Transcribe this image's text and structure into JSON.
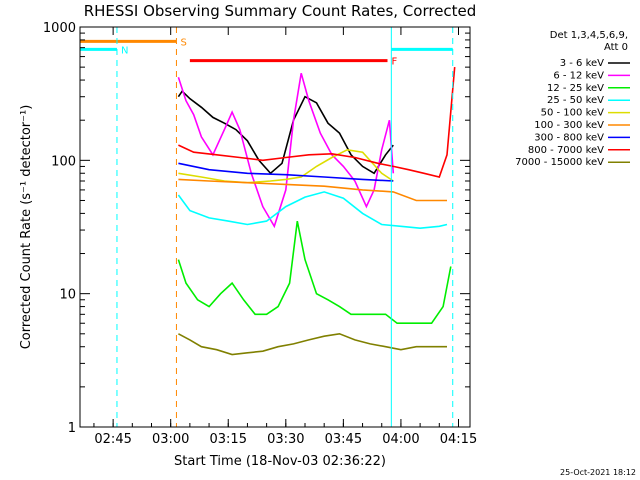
{
  "chart_data": {
    "type": "line",
    "title": "RHESSI Observing Summary Count Rates, Corrected",
    "xlabel": "Start Time (18-Nov-03 02:36:22)",
    "ylabel": "Corrected Count Rate (s⁻¹ detector⁻¹)",
    "y_scale": "log",
    "ylim": [
      1,
      1000
    ],
    "xlim": [
      "02:36:22",
      "04:18:00"
    ],
    "x_ticks": [
      "02:45",
      "03:00",
      "03:15",
      "03:30",
      "03:45",
      "04:00",
      "04:15"
    ],
    "y_ticks": [
      "1",
      "10",
      "100",
      "1000"
    ],
    "grid": false,
    "legend_header": [
      "Det 1,3,4,5,6,9,",
      "Att 0"
    ],
    "legend_position": "right",
    "series": [
      {
        "name": "3 - 6 keV",
        "color": "#000000",
        "x": [
          "03:02",
          "03:03",
          "03:05",
          "03:08",
          "03:11",
          "03:14",
          "03:17",
          "03:20",
          "03:23",
          "03:26",
          "03:29",
          "03:32",
          "03:35",
          "03:38",
          "03:41",
          "03:44",
          "03:47",
          "03:50",
          "03:53",
          "03:56",
          "03:58"
        ],
        "y": [
          300,
          330,
          290,
          250,
          210,
          190,
          170,
          140,
          100,
          80,
          95,
          200,
          300,
          270,
          190,
          160,
          110,
          90,
          80,
          110,
          130
        ]
      },
      {
        "name": "6 - 12 keV",
        "color": "#ff00ff",
        "x": [
          "03:02",
          "03:04",
          "03:06",
          "03:08",
          "03:11",
          "03:14",
          "03:16",
          "03:18",
          "03:21",
          "03:24",
          "03:27",
          "03:30",
          "03:32",
          "03:34",
          "03:36",
          "03:39",
          "03:42",
          "03:45",
          "03:48",
          "03:51",
          "03:53",
          "03:55",
          "03:57",
          "03:58"
        ],
        "y": [
          420,
          280,
          220,
          150,
          110,
          170,
          230,
          170,
          80,
          45,
          32,
          60,
          200,
          450,
          280,
          160,
          110,
          90,
          70,
          45,
          60,
          120,
          200,
          80
        ]
      },
      {
        "name": "12 - 25 keV",
        "color": "#00ee00",
        "x": [
          "03:02",
          "03:04",
          "03:07",
          "03:10",
          "03:13",
          "03:16",
          "03:19",
          "03:22",
          "03:25",
          "03:28",
          "03:31",
          "03:33",
          "03:35",
          "03:38",
          "03:41",
          "03:44",
          "03:47",
          "03:50",
          "03:53",
          "03:56",
          "03:59",
          "04:02",
          "04:05",
          "04:08",
          "04:11",
          "04:13"
        ],
        "y": [
          18,
          12,
          9,
          8,
          10,
          12,
          9,
          7,
          7,
          8,
          12,
          35,
          18,
          10,
          9,
          8,
          7,
          7,
          7,
          7,
          6,
          6,
          6,
          6,
          8,
          16
        ]
      },
      {
        "name": "25 - 50 keV",
        "color": "#00ffff",
        "x": [
          "03:02",
          "03:05",
          "03:10",
          "03:15",
          "03:20",
          "03:25",
          "03:30",
          "03:35",
          "03:40",
          "03:45",
          "03:50",
          "03:55",
          "04:00",
          "04:05",
          "04:10",
          "04:12"
        ],
        "y": [
          55,
          42,
          37,
          35,
          33,
          35,
          45,
          53,
          58,
          52,
          40,
          33,
          32,
          31,
          32,
          33
        ]
      },
      {
        "name": "50 - 100 keV",
        "color": "#dddd00",
        "x": [
          "03:02",
          "03:08",
          "03:14",
          "03:20",
          "03:26",
          "03:30",
          "03:34",
          "03:38",
          "03:42",
          "03:46",
          "03:50",
          "03:55",
          "03:58"
        ],
        "y": [
          80,
          75,
          70,
          68,
          70,
          72,
          75,
          90,
          105,
          120,
          115,
          80,
          70
        ]
      },
      {
        "name": "100 - 300 keV",
        "color": "#ff8800",
        "x": [
          "03:02",
          "03:10",
          "03:20",
          "03:30",
          "03:40",
          "03:50",
          "03:58",
          "04:04",
          "04:12"
        ],
        "y": [
          72,
          70,
          68,
          66,
          64,
          60,
          58,
          50,
          50
        ]
      },
      {
        "name": "300 - 800 keV",
        "color": "#0000ff",
        "x": [
          "03:02",
          "03:10",
          "03:20",
          "03:30",
          "03:40",
          "03:50",
          "03:58"
        ],
        "y": [
          95,
          85,
          80,
          78,
          75,
          72,
          70
        ]
      },
      {
        "name": "800 - 7000 keV",
        "color": "#ff0000",
        "x": [
          "03:02",
          "03:06",
          "03:12",
          "03:18",
          "03:24",
          "03:30",
          "03:36",
          "03:42",
          "03:48",
          "03:54",
          "03:58",
          "04:02",
          "04:06",
          "04:10",
          "04:12",
          "04:14"
        ],
        "y": [
          130,
          115,
          110,
          105,
          100,
          105,
          110,
          112,
          105,
          95,
          90,
          85,
          80,
          75,
          110,
          500
        ]
      },
      {
        "name": "7000 - 15000 keV",
        "color": "#808000",
        "x": [
          "03:02",
          "03:05",
          "03:08",
          "03:12",
          "03:16",
          "03:20",
          "03:24",
          "03:28",
          "03:32",
          "03:36",
          "03:40",
          "03:44",
          "03:48",
          "03:52",
          "03:56",
          "04:00",
          "04:04",
          "04:08",
          "04:12"
        ],
        "y": [
          5,
          4.5,
          4,
          3.8,
          3.5,
          3.6,
          3.7,
          4,
          4.2,
          4.5,
          4.8,
          5,
          4.5,
          4.2,
          4,
          3.8,
          4,
          4,
          4
        ]
      }
    ],
    "flags": [
      {
        "label": "S",
        "color": "#ff8800",
        "x_start": "02:36:22",
        "x_end": "03:01:30",
        "y": 780
      },
      {
        "label": "N",
        "color": "#00ffff",
        "x_start": "02:36:22",
        "x_end": "02:46:00",
        "y": 680
      },
      {
        "label": "F",
        "color": "#ff0000",
        "x_start": "03:05:00",
        "x_end": "03:56:30",
        "y": 560
      },
      {
        "label": "",
        "color": "#00ffff",
        "x_start": "03:57:30",
        "x_end": "04:13:30",
        "y": 680
      }
    ],
    "vlines": [
      {
        "x": "02:46:00",
        "color": "#00ffff",
        "style": "dashed"
      },
      {
        "x": "03:01:30",
        "color": "#ff8800",
        "style": "dashed"
      },
      {
        "x": "03:57:30",
        "color": "#00ffff",
        "style": "solid"
      },
      {
        "x": "04:13:30",
        "color": "#00ffff",
        "style": "dashed"
      }
    ],
    "footer": "25-Oct-2021 18:12"
  }
}
